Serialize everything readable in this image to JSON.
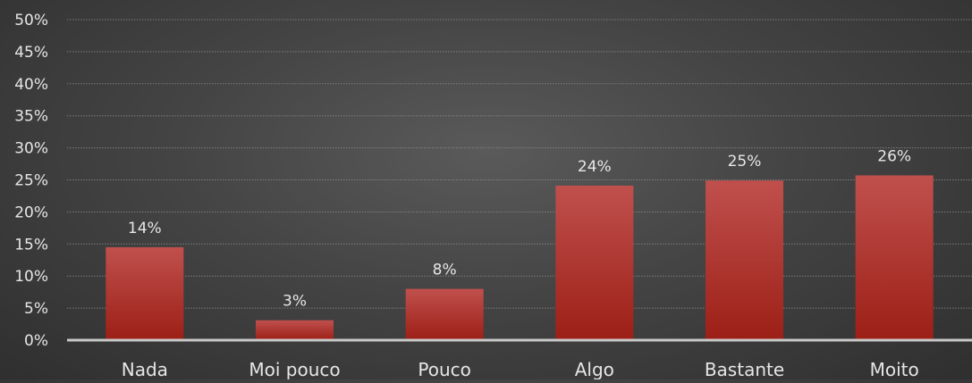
{
  "chart_data": {
    "type": "bar",
    "title": "",
    "xlabel": "",
    "ylabel": "",
    "categories": [
      "Nada",
      "Moi pouco",
      "Pouco",
      "Algo",
      "Bastante",
      "Moito"
    ],
    "values": [
      14.5,
      3.1,
      8.0,
      24.1,
      24.9,
      25.7
    ],
    "data_labels": [
      "14%",
      "3%",
      "8%",
      "24%",
      "25%",
      "26%"
    ],
    "y_ticks": [
      "0%",
      "5%",
      "10%",
      "15%",
      "20%",
      "25%",
      "30%",
      "35%",
      "40%",
      "45%",
      "50%"
    ],
    "ylim": [
      0,
      50
    ],
    "grid": true,
    "legend": "none",
    "colors": {
      "bar_top": "#c0504d",
      "bar_bottom": "#9c1f16",
      "text": "#e6e6e6",
      "gridline": "#8a8a8a",
      "axis": "#c8c8c8"
    }
  }
}
